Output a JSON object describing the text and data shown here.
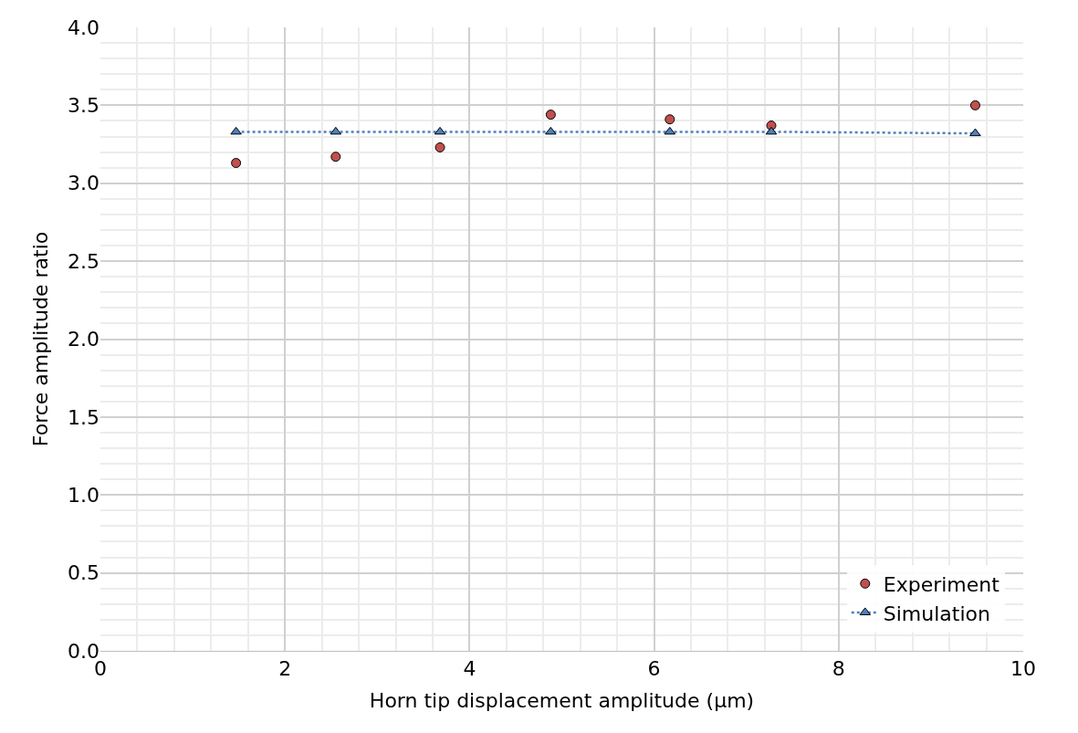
{
  "chart_data": {
    "type": "scatter",
    "xlabel": "Horn tip displacement amplitude (μm)",
    "ylabel": "Force amplitude ratio",
    "xlim": [
      0,
      10
    ],
    "xticks": [
      0,
      2,
      4,
      6,
      8,
      10
    ],
    "ylim": [
      0,
      4
    ],
    "yticks": [
      {
        "value": 0,
        "label": "0.0"
      },
      {
        "value": 0.5,
        "label": "0.5"
      },
      {
        "value": 1,
        "label": "1.0"
      },
      {
        "value": 1.5,
        "label": "1.5"
      },
      {
        "value": 2,
        "label": "2.0"
      },
      {
        "value": 2.5,
        "label": "2.5"
      },
      {
        "value": 3,
        "label": "3.0"
      },
      {
        "value": 3.5,
        "label": "3.5"
      },
      {
        "value": 4,
        "label": "4.0"
      }
    ],
    "grid": true,
    "legend": "bottom right",
    "series": [
      {
        "name": "Experiment",
        "marker": "circle",
        "color": "#c0504d",
        "x": [
          1.47,
          2.55,
          3.68,
          4.88,
          6.17,
          7.27,
          9.48
        ],
        "values": [
          3.13,
          3.17,
          3.23,
          3.44,
          3.41,
          3.37,
          3.5
        ]
      },
      {
        "name": "Simulation",
        "type": "line",
        "marker": "triangle",
        "line_style": "dotted",
        "color": "#4f81bd",
        "x": [
          1.47,
          2.55,
          3.68,
          4.88,
          6.17,
          7.27,
          9.48
        ],
        "values": [
          3.33,
          3.33,
          3.33,
          3.33,
          3.33,
          3.33,
          3.32
        ]
      }
    ]
  }
}
